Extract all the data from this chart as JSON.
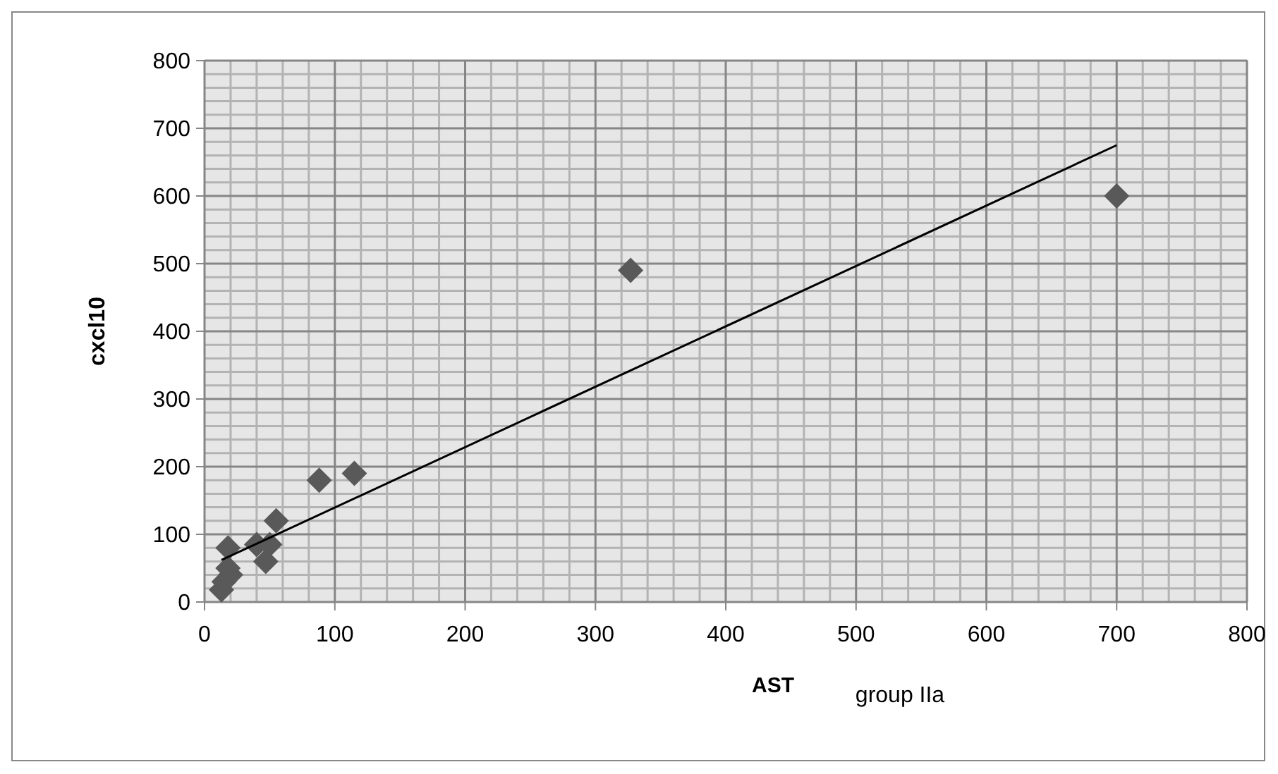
{
  "chart_data": {
    "type": "scatter",
    "xlabel": "AST",
    "ylabel": "cxcl10",
    "annotations": [
      "group IIa"
    ],
    "marker": "diamond",
    "grid": true,
    "xlim": [
      0,
      800
    ],
    "xticks": [
      0,
      100,
      200,
      300,
      400,
      500,
      600,
      700,
      800
    ],
    "ylim": [
      0,
      800
    ],
    "yticks": [
      0,
      100,
      200,
      300,
      400,
      500,
      600,
      700,
      800
    ],
    "series": [
      {
        "color": "#595959",
        "x": [
          13,
          15,
          18,
          20,
          18,
          40,
          47,
          50,
          55,
          88,
          115,
          327,
          700
        ],
        "values": [
          18,
          30,
          50,
          40,
          80,
          85,
          60,
          85,
          120,
          180,
          190,
          490,
          600
        ]
      },
      {
        "type": "line",
        "color": "#000000",
        "marker": "none",
        "x": [
          13,
          700
        ],
        "values": [
          62,
          675
        ]
      }
    ]
  }
}
